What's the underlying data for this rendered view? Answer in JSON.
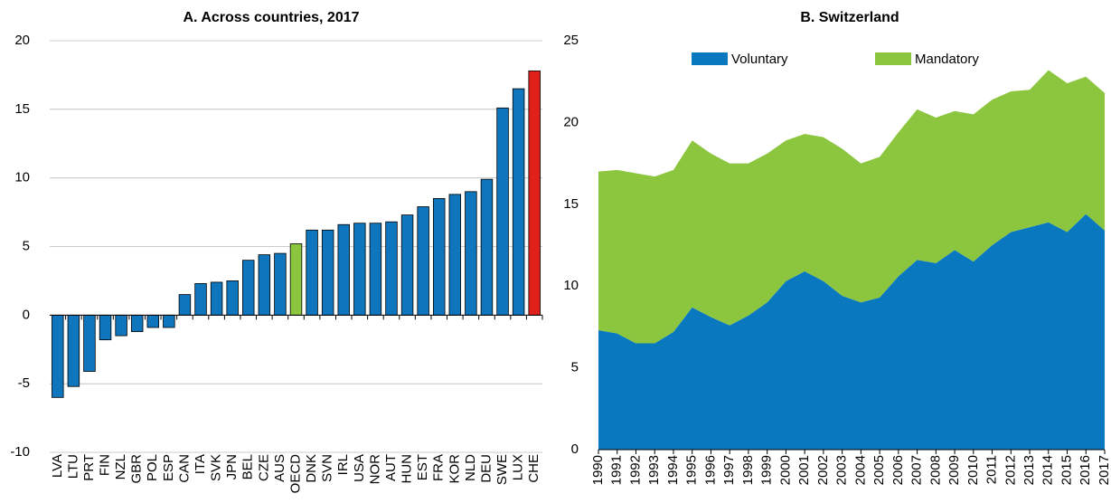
{
  "chart_data": [
    {
      "type": "bar",
      "title": "A. Across countries, 2017",
      "categories": [
        "LVA",
        "LTU",
        "PRT",
        "FIN",
        "NZL",
        "GBR",
        "POL",
        "ESP",
        "CAN",
        "ITA",
        "SVK",
        "JPN",
        "BEL",
        "CZE",
        "AUS",
        "OECD",
        "DNK",
        "SVN",
        "IRL",
        "USA",
        "NOR",
        "AUT",
        "HUN",
        "EST",
        "FRA",
        "KOR",
        "NLD",
        "DEU",
        "SWE",
        "LUX",
        "CHE"
      ],
      "values": [
        -6.0,
        -5.2,
        -4.1,
        -1.8,
        -1.5,
        -1.2,
        -0.9,
        -0.9,
        1.5,
        2.3,
        2.4,
        2.5,
        4.0,
        4.4,
        4.5,
        5.2,
        6.2,
        6.2,
        6.6,
        6.7,
        6.7,
        6.8,
        7.3,
        7.9,
        8.5,
        8.8,
        9.0,
        9.9,
        15.1,
        16.5,
        17.8
      ],
      "colors": [
        "#0f75bc",
        "#0f75bc",
        "#0f75bc",
        "#0f75bc",
        "#0f75bc",
        "#0f75bc",
        "#0f75bc",
        "#0f75bc",
        "#0f75bc",
        "#0f75bc",
        "#0f75bc",
        "#0f75bc",
        "#0f75bc",
        "#0f75bc",
        "#0f75bc",
        "#8cc63f",
        "#0f75bc",
        "#0f75bc",
        "#0f75bc",
        "#0f75bc",
        "#0f75bc",
        "#0f75bc",
        "#0f75bc",
        "#0f75bc",
        "#0f75bc",
        "#0f75bc",
        "#0f75bc",
        "#0f75bc",
        "#0f75bc",
        "#0f75bc",
        "#e0201b"
      ],
      "ylim": [
        -10,
        20
      ],
      "yticks": [
        -10,
        -5,
        0,
        5,
        10,
        15,
        20
      ],
      "grid": true
    },
    {
      "type": "stacked_area",
      "title": "B. Switzerland",
      "categories": [
        "1990",
        "1991",
        "1992",
        "1993",
        "1994",
        "1995",
        "1996",
        "1997",
        "1998",
        "1999",
        "2000",
        "2001",
        "2002",
        "2003",
        "2004",
        "2005",
        "2006",
        "2007",
        "2008",
        "2009",
        "2010",
        "2011",
        "2012",
        "2013",
        "2014",
        "2015",
        "2016",
        "2017"
      ],
      "series": [
        {
          "name": "Voluntary",
          "color": "#0a78be",
          "values": [
            7.3,
            7.1,
            6.5,
            6.5,
            7.2,
            8.7,
            8.1,
            7.6,
            8.2,
            9.0,
            10.3,
            10.9,
            10.3,
            9.4,
            9.0,
            9.3,
            10.6,
            11.6,
            11.4,
            12.2,
            11.5,
            12.5,
            13.3,
            13.6,
            13.9,
            13.3,
            14.4,
            13.4
          ]
        },
        {
          "name": "Mandatory",
          "color": "#8cc63f",
          "values": [
            9.7,
            10.0,
            10.4,
            10.2,
            9.9,
            10.2,
            10.0,
            9.9,
            9.3,
            9.1,
            8.6,
            8.4,
            8.8,
            9.0,
            8.5,
            8.6,
            8.8,
            9.2,
            8.9,
            8.5,
            9.0,
            8.9,
            8.6,
            8.4,
            9.3,
            9.1,
            8.4,
            8.4
          ]
        }
      ],
      "ylim": [
        0,
        25
      ],
      "yticks": [
        0,
        5,
        10,
        15,
        20,
        25
      ],
      "grid": false
    }
  ]
}
